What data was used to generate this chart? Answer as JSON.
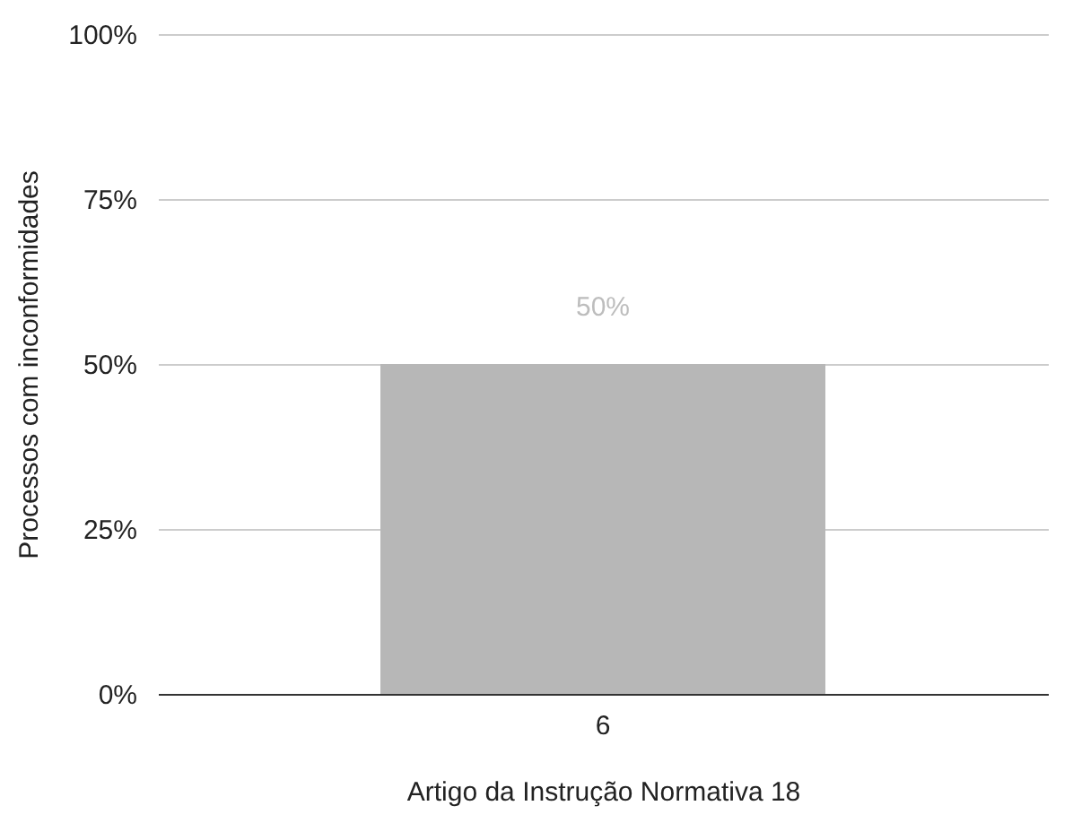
{
  "chart_data": {
    "type": "bar",
    "xlabel": "Artigo da Instrução Normativa 18",
    "ylabel": "Processos com inconformidades",
    "categories": [
      "6"
    ],
    "values": [
      50
    ],
    "value_labels": [
      "50%"
    ],
    "color": "#b7b7b7",
    "ylim": [
      0,
      100
    ],
    "yticks": [
      {
        "value": 0,
        "label": "0%"
      },
      {
        "value": 25,
        "label": "25%"
      },
      {
        "value": 50,
        "label": "50%"
      },
      {
        "value": 75,
        "label": "75%"
      },
      {
        "value": 100,
        "label": "100%"
      }
    ],
    "grid": "y"
  }
}
